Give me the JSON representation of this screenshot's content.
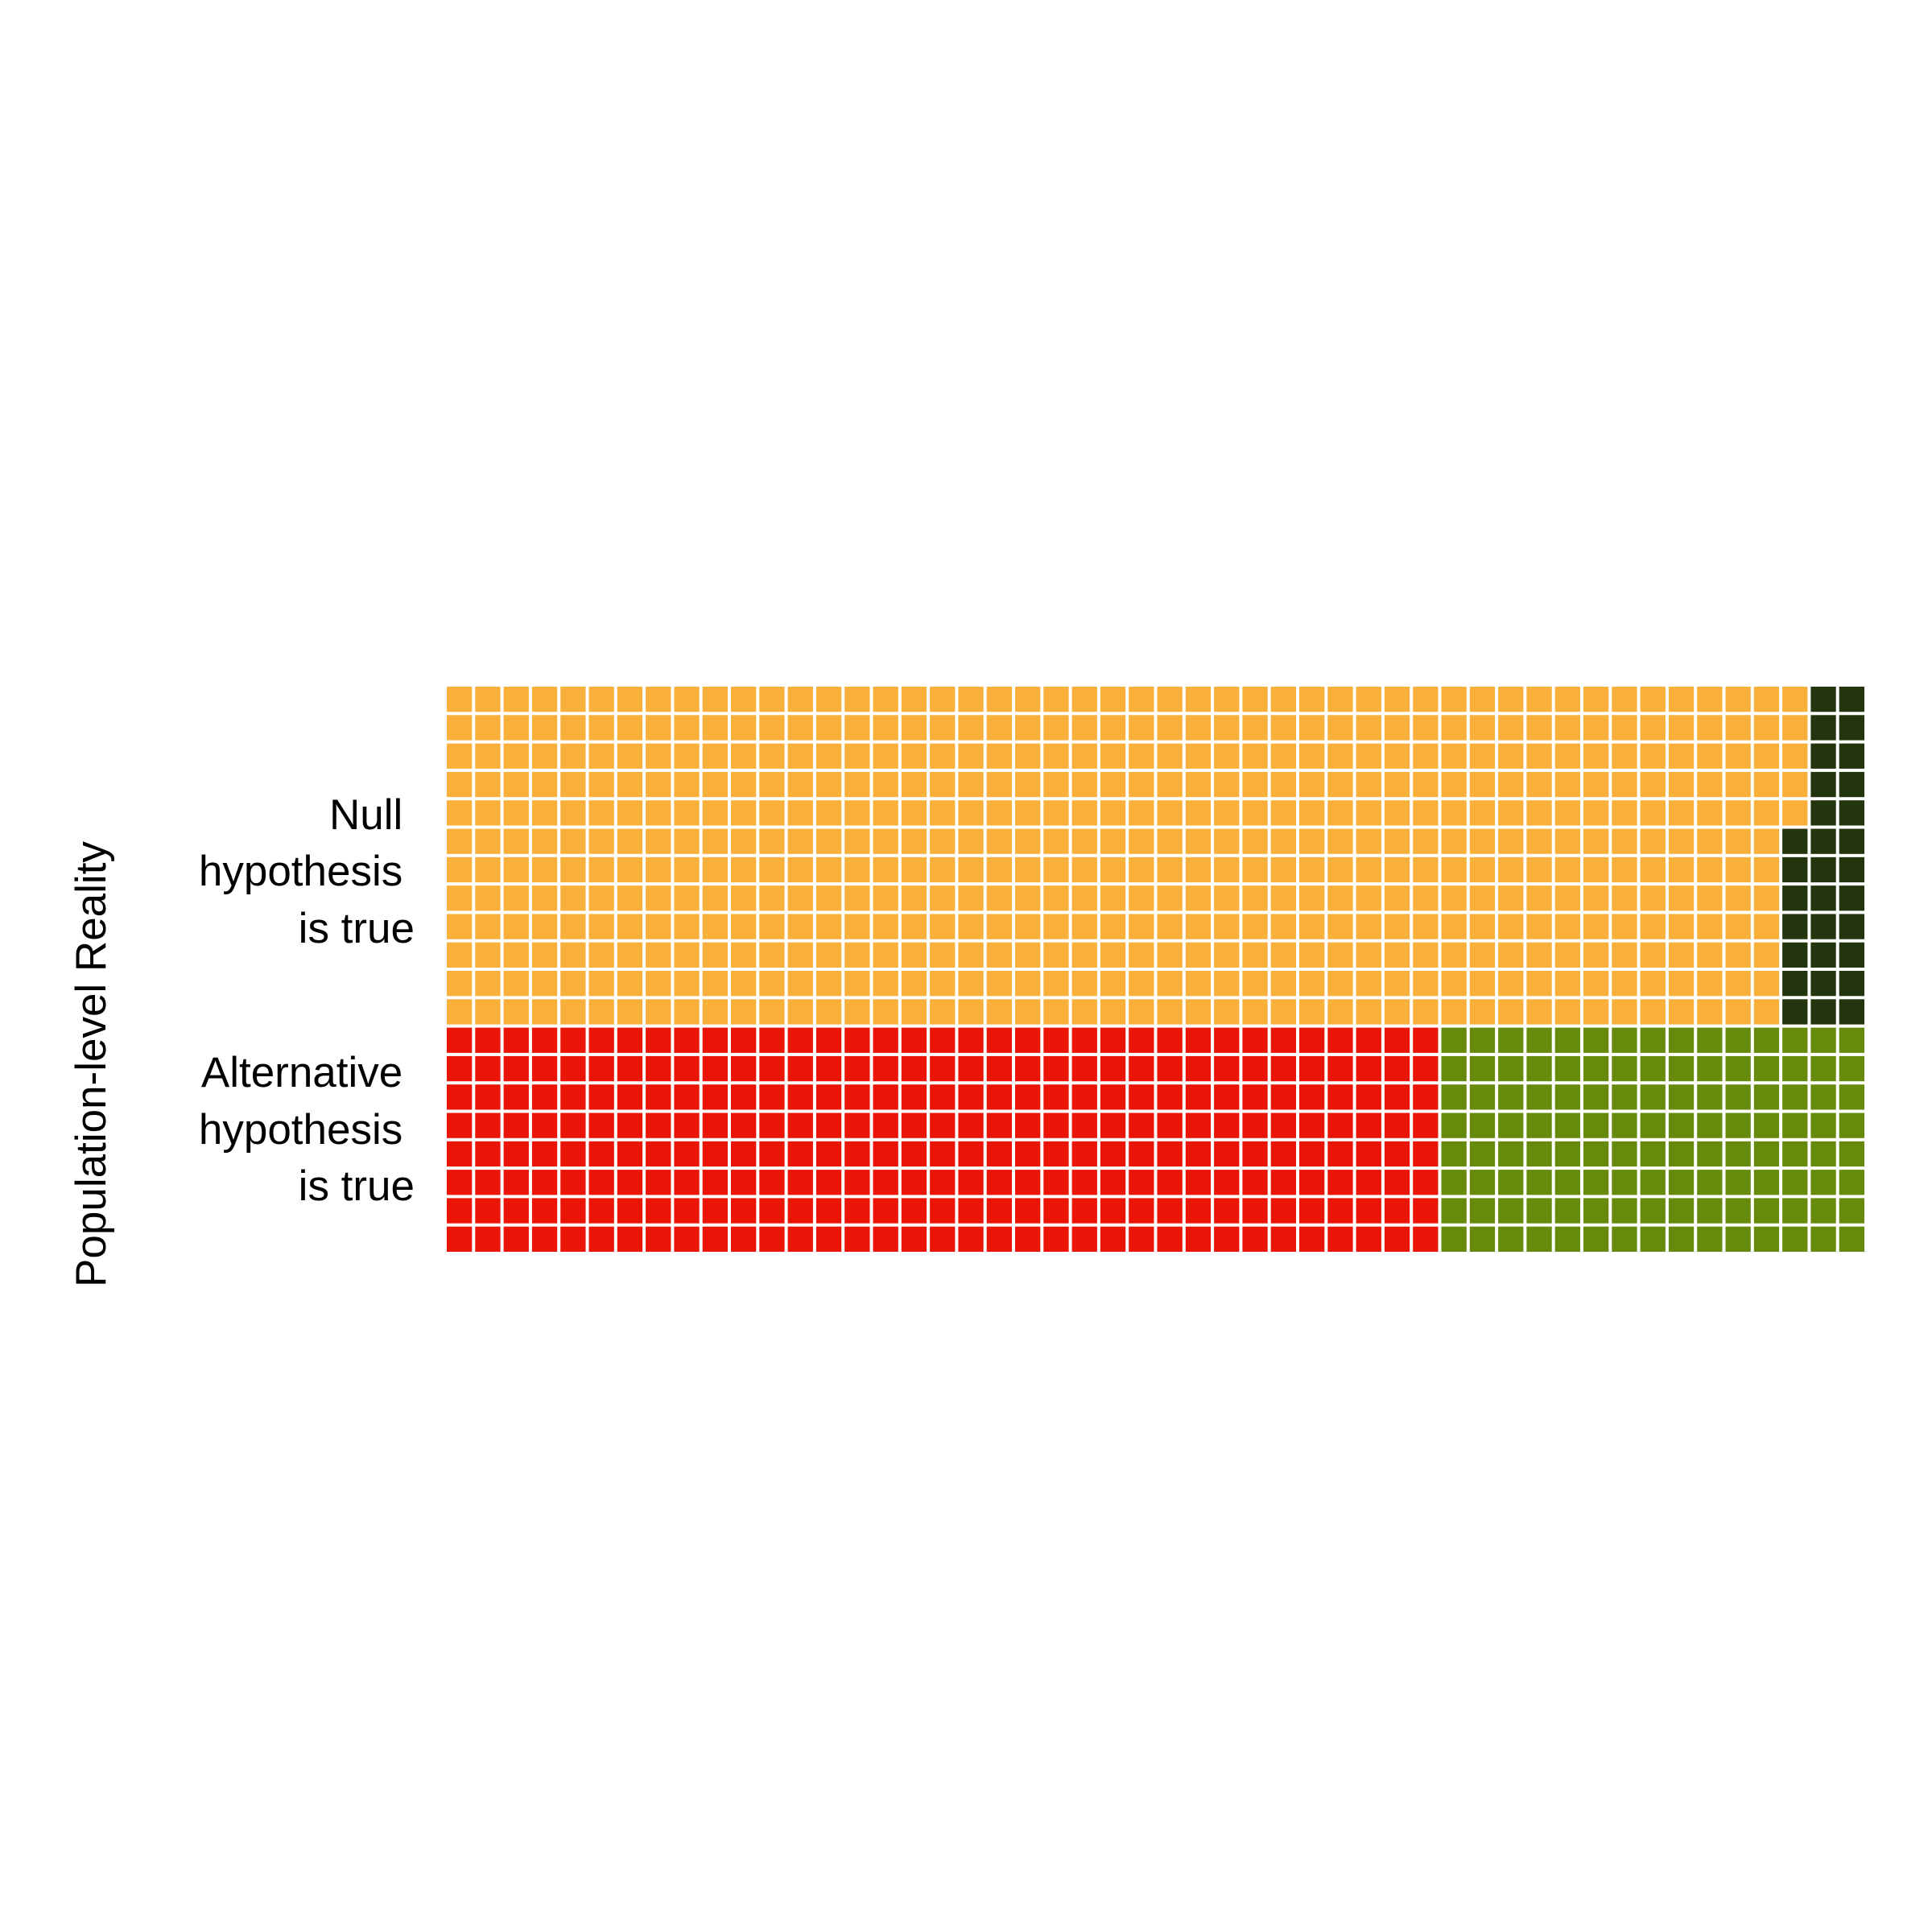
{
  "chart_data": {
    "type": "waffle",
    "ylabel": "Population-level Reality",
    "grid_columns": 50,
    "rows": [
      {
        "label_lines": [
          "Null",
          "hypothesis",
          "is true"
        ],
        "unit_rows": 12,
        "segments": [
          {
            "color": "#F8B03A",
            "count": 569
          },
          {
            "color": "#22350C",
            "count": 31
          }
        ]
      },
      {
        "label_lines": [
          "Alternative",
          "hypothesis",
          "is true"
        ],
        "unit_rows": 8,
        "segments": [
          {
            "color": "#EA1507",
            "count": 280
          },
          {
            "color": "#668A0B",
            "count": 120
          }
        ]
      }
    ]
  }
}
